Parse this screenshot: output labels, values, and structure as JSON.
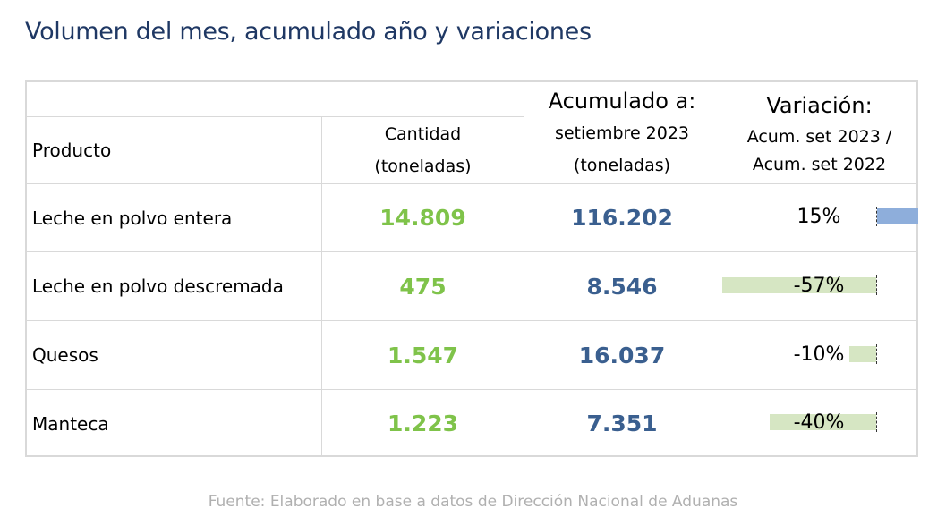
{
  "title": "Volumen del mes, acumulado año y variaciones",
  "header": {
    "producto": "Producto",
    "cantidad_line1": "Cantidad",
    "cantidad_line2": "(toneladas)",
    "acumulado_line1": "Acumulado a:",
    "acumulado_line2": "setiembre 2023",
    "acumulado_line3": "(toneladas)",
    "variacion_line1": "Variación:",
    "variacion_line2": "Acum. set 2023 /",
    "variacion_line3": "Acum. set 2022"
  },
  "rows": [
    {
      "producto": "Leche en polvo entera",
      "cantidad": "14.809",
      "acumulado": "116.202",
      "variacion": "15%",
      "variacion_value": 15
    },
    {
      "producto": "Leche en polvo descremada",
      "cantidad": "475",
      "acumulado": "8.546",
      "variacion": "-57%",
      "variacion_value": -57
    },
    {
      "producto": "Quesos",
      "cantidad": "1.547",
      "acumulado": "16.037",
      "variacion": "-10%",
      "variacion_value": -10
    },
    {
      "producto": "Manteca",
      "cantidad": "1.223",
      "acumulado": "7.351",
      "variacion": "-40%",
      "variacion_value": -40
    }
  ],
  "colors": {
    "title": "#1f3864",
    "cantidad": "#7fc34a",
    "acumulado": "#3a5f8f",
    "positive_bar": "#8eaedb",
    "negative_bar": "#d6e6c3"
  },
  "source": "Fuente: Elaborado en base a datos de Dirección Nacional de Aduanas"
}
